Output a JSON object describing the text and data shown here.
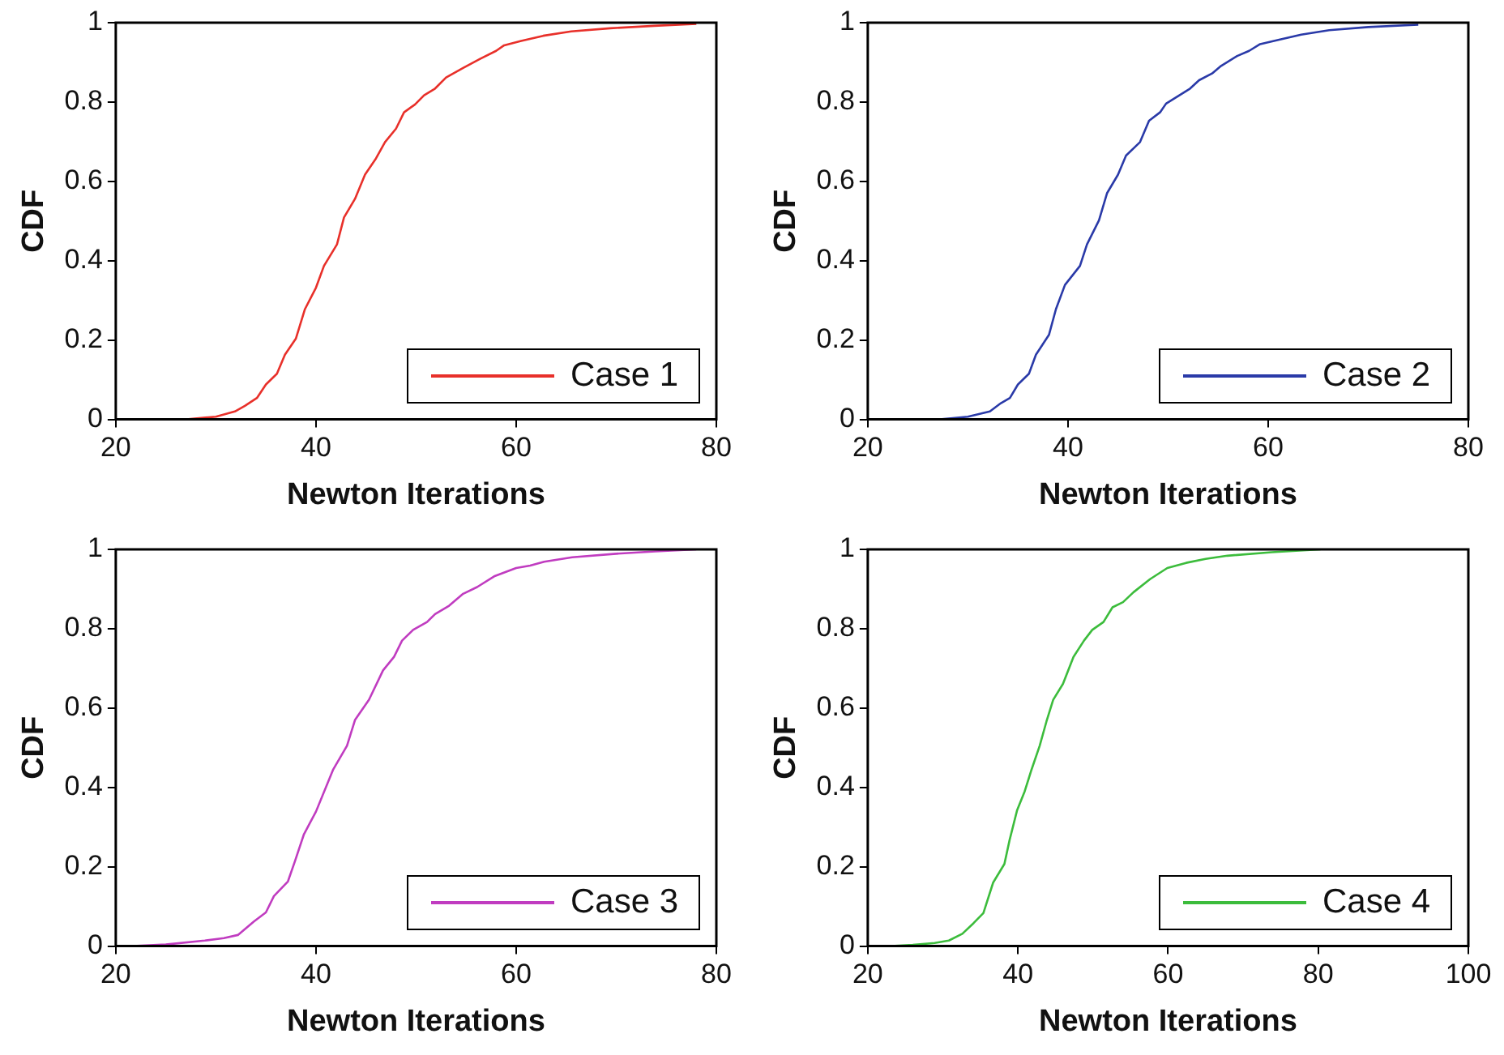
{
  "chart_data": [
    {
      "type": "line",
      "xlabel": "Newton Iterations",
      "ylabel": "CDF",
      "xlim": [
        20,
        80
      ],
      "xticks": [
        20,
        40,
        60,
        80
      ],
      "ylim": [
        0,
        1
      ],
      "yticks": [
        0,
        0.2,
        0.4,
        0.6,
        0.8,
        1
      ],
      "legend": "bottom right",
      "grid": false,
      "series": [
        {
          "name": "Case 1",
          "color": "#e8302a",
          "x": [
            27.05,
            30,
            31.9,
            32.9,
            34.1,
            35,
            36.1,
            36.9,
            38,
            38.9,
            40,
            40.8,
            42.1,
            42.8,
            43.9,
            44.9,
            46,
            46.9,
            48,
            48.8,
            49.9,
            50.8,
            51.9,
            53,
            54.7,
            56.4,
            58,
            58.8,
            60.5,
            62.7,
            65.5,
            69.4,
            73.8,
            78
          ],
          "values": [
            0,
            0.007,
            0.02,
            0.034,
            0.054,
            0.088,
            0.115,
            0.163,
            0.204,
            0.278,
            0.332,
            0.387,
            0.441,
            0.509,
            0.556,
            0.617,
            0.658,
            0.699,
            0.733,
            0.774,
            0.794,
            0.817,
            0.834,
            0.862,
            0.886,
            0.909,
            0.929,
            0.943,
            0.954,
            0.967,
            0.978,
            0.986,
            0.992,
            0.997
          ]
        }
      ]
    },
    {
      "type": "line",
      "xlabel": "Newton Iterations",
      "ylabel": "CDF",
      "xlim": [
        20,
        80
      ],
      "xticks": [
        20,
        40,
        60,
        80
      ],
      "ylim": [
        0,
        1
      ],
      "yticks": [
        0,
        0.2,
        0.4,
        0.6,
        0.8,
        1
      ],
      "legend": "bottom right",
      "grid": false,
      "series": [
        {
          "name": "Case 2",
          "color": "#2a3aa8",
          "x": [
            27.2,
            30,
            32.2,
            33.3,
            34.2,
            35,
            36.1,
            36.8,
            38.1,
            38.8,
            39.7,
            41.2,
            41.9,
            43.1,
            43.9,
            45,
            45.8,
            47.2,
            48.1,
            49.2,
            49.8,
            52.2,
            53.1,
            54.4,
            55.3,
            56.9,
            58.1,
            59.2,
            61.1,
            63.3,
            66.1,
            70,
            75
          ],
          "values": [
            0,
            0.007,
            0.02,
            0.041,
            0.054,
            0.088,
            0.115,
            0.163,
            0.213,
            0.278,
            0.339,
            0.387,
            0.441,
            0.502,
            0.57,
            0.617,
            0.665,
            0.699,
            0.753,
            0.774,
            0.796,
            0.834,
            0.855,
            0.872,
            0.891,
            0.916,
            0.929,
            0.946,
            0.957,
            0.97,
            0.981,
            0.989,
            0.995
          ]
        }
      ]
    },
    {
      "type": "line",
      "xlabel": "Newton Iterations",
      "ylabel": "CDF",
      "xlim": [
        20,
        80
      ],
      "xticks": [
        20,
        40,
        60,
        80
      ],
      "ylim": [
        0,
        1
      ],
      "yticks": [
        0,
        0.2,
        0.4,
        0.6,
        0.8,
        1
      ],
      "legend": "bottom right",
      "grid": false,
      "series": [
        {
          "name": "Case 3",
          "color": "#c03cc0",
          "x": [
            21.7,
            25,
            28.9,
            30.8,
            32.2,
            33.8,
            35,
            35.8,
            37.2,
            37.9,
            38.8,
            40,
            41.7,
            43.1,
            43.9,
            45.3,
            46.7,
            47.8,
            48.6,
            49.7,
            51.1,
            51.9,
            53.3,
            54.7,
            56.1,
            57.8,
            60,
            61.4,
            62.8,
            65.6,
            70,
            73.9,
            78
          ],
          "values": [
            0,
            0.004,
            0.014,
            0.02,
            0.028,
            0.062,
            0.085,
            0.126,
            0.163,
            0.214,
            0.282,
            0.339,
            0.444,
            0.505,
            0.57,
            0.621,
            0.695,
            0.729,
            0.77,
            0.797,
            0.817,
            0.837,
            0.858,
            0.888,
            0.905,
            0.932,
            0.953,
            0.959,
            0.969,
            0.98,
            0.989,
            0.995,
            1
          ]
        }
      ]
    },
    {
      "type": "line",
      "xlabel": "Newton Iterations",
      "ylabel": "CDF",
      "xlim": [
        20,
        100
      ],
      "xticks": [
        20,
        40,
        60,
        80,
        100
      ],
      "ylim": [
        0,
        1
      ],
      "yticks": [
        0,
        0.2,
        0.4,
        0.6,
        0.8,
        1
      ],
      "legend": "bottom right",
      "grid": false,
      "series": [
        {
          "name": "Case 4",
          "color": "#3cbc3c",
          "x": [
            23.1,
            26,
            28.9,
            30.8,
            32.6,
            34.1,
            35.4,
            36.7,
            38.2,
            38.9,
            39.9,
            40.9,
            41.8,
            42.9,
            43.8,
            44.7,
            46,
            47.4,
            48.8,
            49.9,
            51.4,
            52.6,
            54,
            55.4,
            57.6,
            59.9,
            62.4,
            65,
            67.9,
            73.8,
            80.3
          ],
          "values": [
            0,
            0.003,
            0.008,
            0.014,
            0.031,
            0.058,
            0.083,
            0.16,
            0.207,
            0.268,
            0.343,
            0.39,
            0.444,
            0.505,
            0.566,
            0.621,
            0.661,
            0.729,
            0.77,
            0.797,
            0.817,
            0.854,
            0.867,
            0.892,
            0.925,
            0.953,
            0.966,
            0.976,
            0.984,
            0.993,
            1
          ]
        }
      ]
    }
  ]
}
